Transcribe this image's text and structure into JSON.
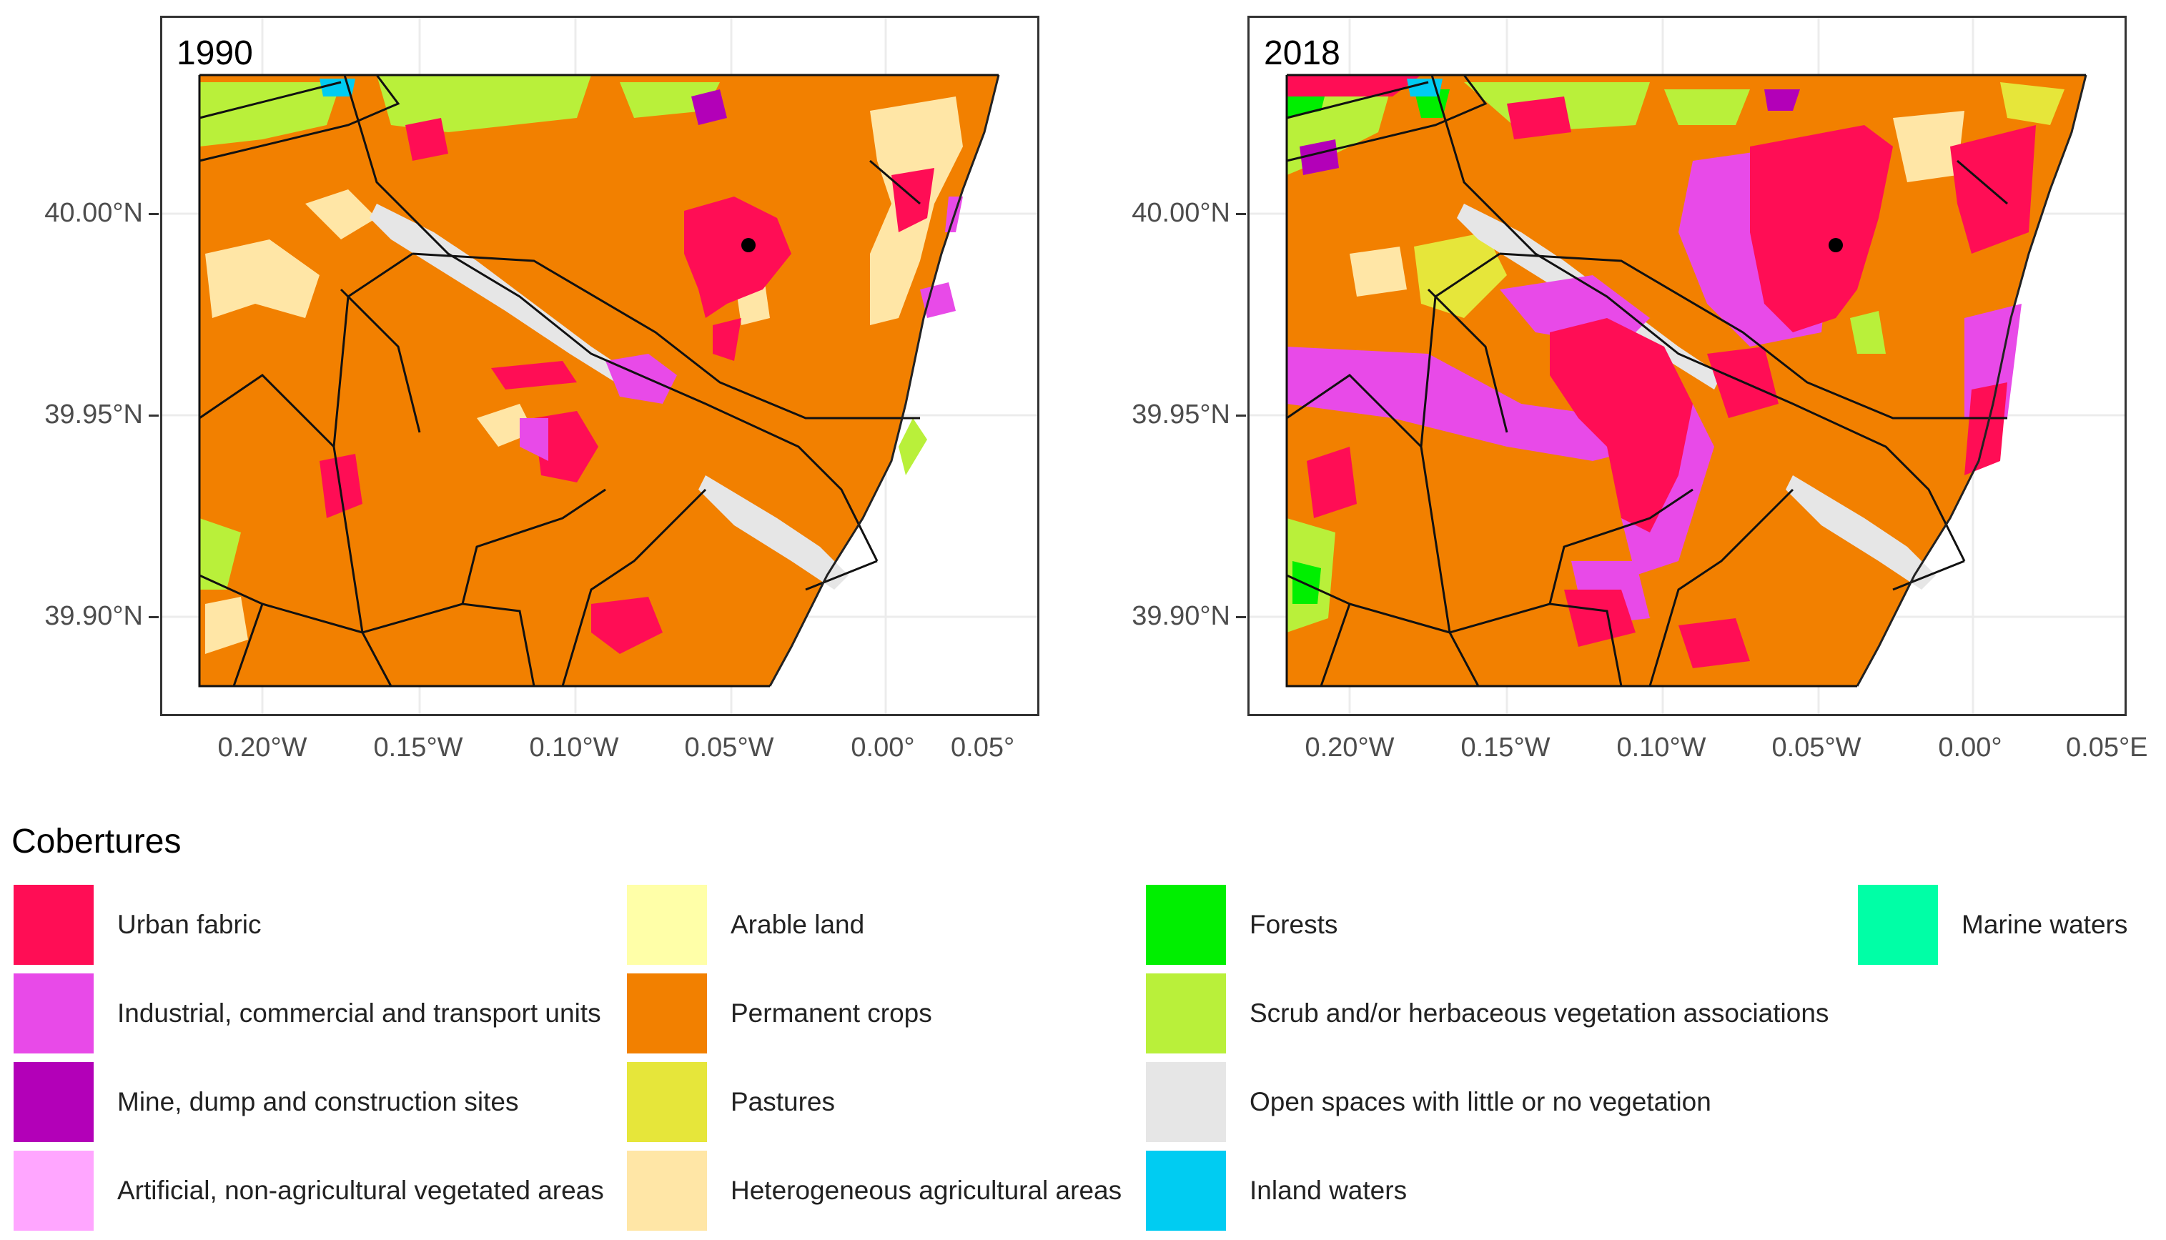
{
  "maps": [
    {
      "year": "1990",
      "x_tick_labels": [
        "0.20°W",
        "0.15°W",
        "0.10°W",
        "0.05°W",
        "0.00°",
        "0.05°"
      ],
      "y_tick_labels": [
        "40.00°N",
        "39.95°N",
        "39.90°N"
      ]
    },
    {
      "year": "2018",
      "x_tick_labels": [
        "0.20°W",
        "0.15°W",
        "0.10°W",
        "0.05°W",
        "0.00°",
        "0.05°E"
      ],
      "y_tick_labels": [
        "40.00°N",
        "39.95°N",
        "39.90°N"
      ]
    }
  ],
  "legend": {
    "title": "Cobertures",
    "items": [
      {
        "label": "Urban fabric",
        "color": "#ff0d55"
      },
      {
        "label": "Industrial, commercial and transport units",
        "color": "#e84ae8"
      },
      {
        "label": "Mine, dump and construction sites",
        "color": "#b300b8"
      },
      {
        "label": "Artificial, non-agricultural vegetated areas",
        "color": "#ffa6ff"
      },
      {
        "label": "Arable land",
        "color": "#ffffa8"
      },
      {
        "label": "Permanent crops",
        "color": "#f28000"
      },
      {
        "label": "Pastures",
        "color": "#e6e63a"
      },
      {
        "label": "Heterogeneous agricultural areas",
        "color": "#ffe6a6"
      },
      {
        "label": "Forests",
        "color": "#00ef00"
      },
      {
        "label": "Scrub and/or herbaceous vegetation associations",
        "color": "#b9f03a"
      },
      {
        "label": "Open spaces with little or no vegetation",
        "color": "#e6e6e6"
      },
      {
        "label": "Inland waters",
        "color": "#00ccf2"
      },
      {
        "label": "Marine waters",
        "color": "#00ffa6"
      }
    ]
  }
}
